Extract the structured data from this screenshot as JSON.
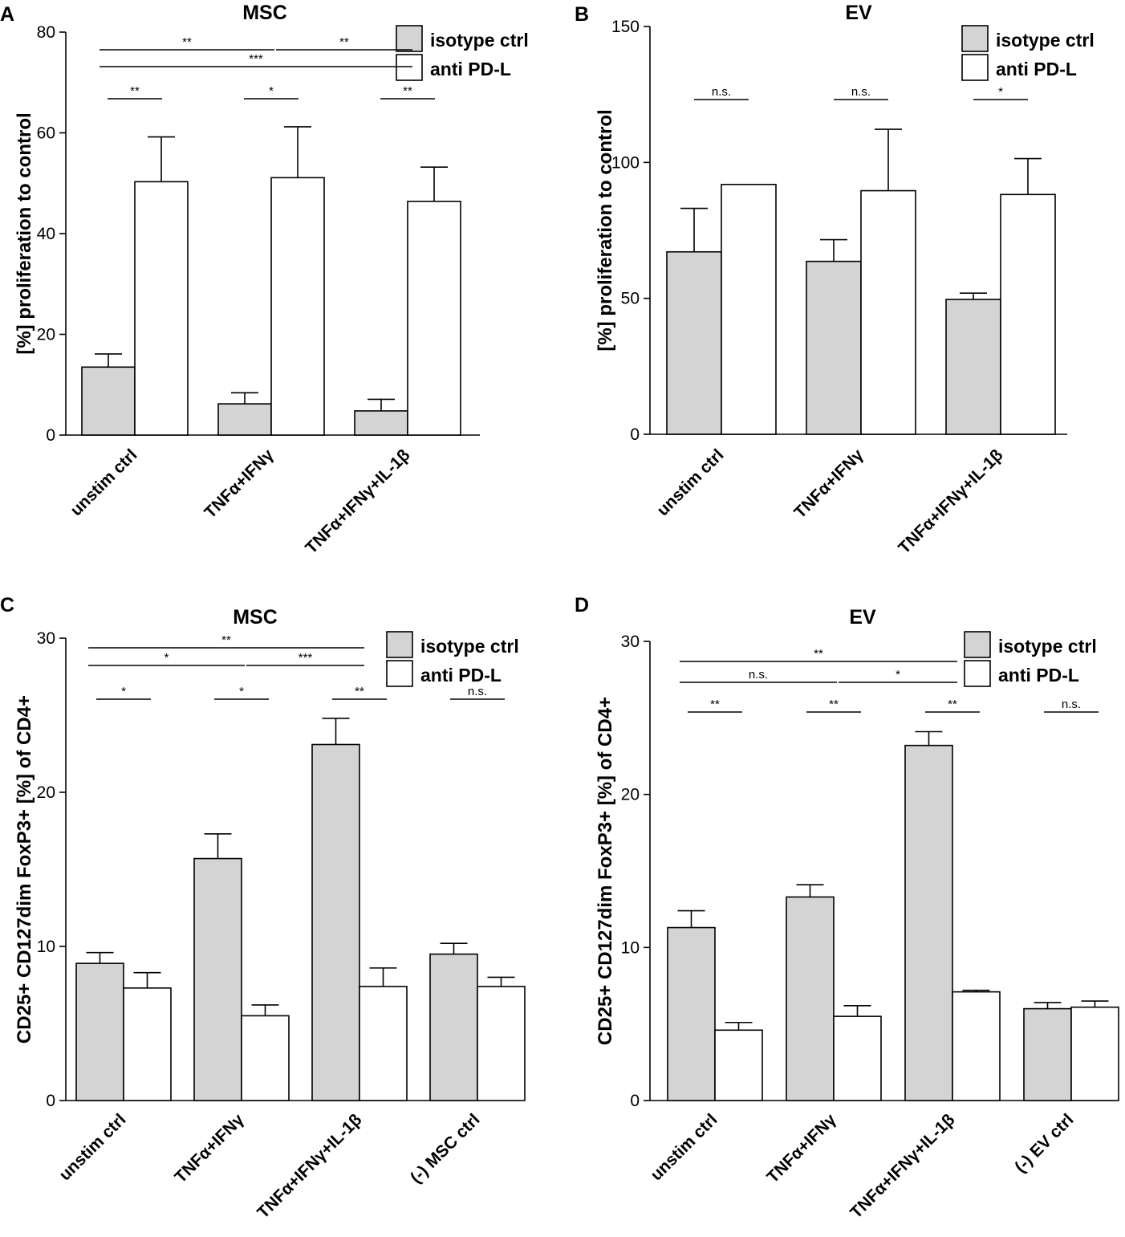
{
  "colors": {
    "isotype": "#d4d4d4",
    "anti": "#ffffff",
    "stroke": "#000000"
  },
  "chart_data": [
    {
      "panel": "A",
      "type": "bar",
      "title": "MSC",
      "ylabel": "[%] proliferation to control",
      "ylim": [
        0,
        80
      ],
      "yticks": [
        0,
        20,
        40,
        60,
        80
      ],
      "categories": [
        "unstim ctrl",
        "TNFα+IFNγ",
        "TNFα+IFNγ+IL-1β"
      ],
      "series": [
        {
          "name": "isotype ctrl",
          "color_key": "isotype",
          "values": [
            13.5,
            6.2,
            4.8
          ],
          "errors": [
            2.6,
            2.2,
            2.3
          ]
        },
        {
          "name": "anti PD-L",
          "color_key": "anti",
          "values": [
            50.3,
            51.1,
            46.4
          ],
          "errors": [
            8.9,
            10.1,
            6.8
          ]
        }
      ],
      "legend": [
        "isotype ctrl",
        "anti PD-L"
      ],
      "significance": [
        {
          "from": 0,
          "to": 1,
          "level": 0,
          "label": "**"
        },
        {
          "from": 1,
          "to": 2,
          "level": 0,
          "label": "**"
        },
        {
          "from": 0,
          "to": 2,
          "level": 1,
          "label": "***"
        },
        {
          "within": 0,
          "label": "**"
        },
        {
          "within": 1,
          "label": "*"
        },
        {
          "within": 2,
          "label": "**"
        }
      ]
    },
    {
      "panel": "B",
      "type": "bar",
      "title": "EV",
      "ylabel": "[%] proliferation to control",
      "ylim": [
        0,
        150
      ],
      "yticks": [
        0,
        50,
        100,
        150
      ],
      "categories": [
        "unstim ctrl",
        "TNFα+IFNγ",
        "TNFα+IFNγ+IL-1β"
      ],
      "series": [
        {
          "name": "isotype ctrl",
          "color_key": "isotype",
          "values": [
            67.1,
            63.6,
            49.6
          ],
          "errors": [
            16.0,
            8.0,
            2.3
          ]
        },
        {
          "name": "anti PD-L",
          "color_key": "anti",
          "values": [
            91.9,
            89.6,
            88.2
          ],
          "errors": [
            0,
            22.6,
            13.2
          ]
        }
      ],
      "legend": [
        "isotype ctrl",
        "anti PD-L"
      ],
      "significance": [
        {
          "within": 0,
          "label": "n.s."
        },
        {
          "within": 1,
          "label": "n.s."
        },
        {
          "within": 2,
          "label": "*"
        }
      ]
    },
    {
      "panel": "C",
      "type": "bar",
      "title": "MSC",
      "ylabel": "CD25+ CD127dim FoxP3+ [%] of CD4+",
      "ylim": [
        0,
        30
      ],
      "yticks": [
        0,
        10,
        20,
        30
      ],
      "categories": [
        "unstim ctrl",
        "TNFα+IFNγ",
        "TNFα+IFNγ+IL-1β",
        "(-) MSC ctrl"
      ],
      "series": [
        {
          "name": "isotype ctrl",
          "color_key": "isotype",
          "values": [
            8.9,
            15.7,
            23.1,
            9.5
          ],
          "errors": [
            0.7,
            1.6,
            1.7,
            0.7
          ]
        },
        {
          "name": "anti PD-L",
          "color_key": "anti",
          "values": [
            7.3,
            5.5,
            7.4,
            7.4
          ],
          "errors": [
            1.0,
            0.7,
            1.2,
            0.6
          ]
        }
      ],
      "legend": [
        "isotype ctrl",
        "anti PD-L"
      ],
      "significance": [
        {
          "from": 0,
          "to": 2,
          "level": 1,
          "label": "**"
        },
        {
          "from": 0,
          "to": 1,
          "level": 0,
          "label": "*"
        },
        {
          "from": 1,
          "to": 2,
          "level": 0,
          "label": "***"
        },
        {
          "within": 0,
          "label": "*"
        },
        {
          "within": 1,
          "label": "*"
        },
        {
          "within": 2,
          "label": "**"
        },
        {
          "within": 3,
          "label": "n.s."
        }
      ]
    },
    {
      "panel": "D",
      "type": "bar",
      "title": "EV",
      "ylabel": "CD25+ CD127dim FoxP3+ [%] of CD4+",
      "ylim": [
        0,
        30
      ],
      "yticks": [
        0,
        10,
        20,
        30
      ],
      "categories": [
        "unstim ctrl",
        "TNFα+IFNγ",
        "TNFα+IFNγ+IL-1β",
        "(-) EV ctrl"
      ],
      "series": [
        {
          "name": "isotype ctrl",
          "color_key": "isotype",
          "values": [
            11.3,
            13.3,
            23.2,
            6.0
          ],
          "errors": [
            1.1,
            0.8,
            0.9,
            0.4
          ]
        },
        {
          "name": "anti PD-L",
          "color_key": "anti",
          "values": [
            4.6,
            5.5,
            7.1,
            6.1
          ],
          "errors": [
            0.5,
            0.7,
            0.1,
            0.4
          ]
        }
      ],
      "legend": [
        "isotype ctrl",
        "anti PD-L"
      ],
      "significance": [
        {
          "from": 0,
          "to": 2,
          "level": 1,
          "label": "**"
        },
        {
          "from": 0,
          "to": 1,
          "level": 0,
          "label": "n.s."
        },
        {
          "from": 1,
          "to": 2,
          "level": 0,
          "label": "*"
        },
        {
          "within": 0,
          "label": "**"
        },
        {
          "within": 1,
          "label": "**"
        },
        {
          "within": 2,
          "label": "**"
        },
        {
          "within": 3,
          "label": "n.s."
        }
      ]
    }
  ]
}
